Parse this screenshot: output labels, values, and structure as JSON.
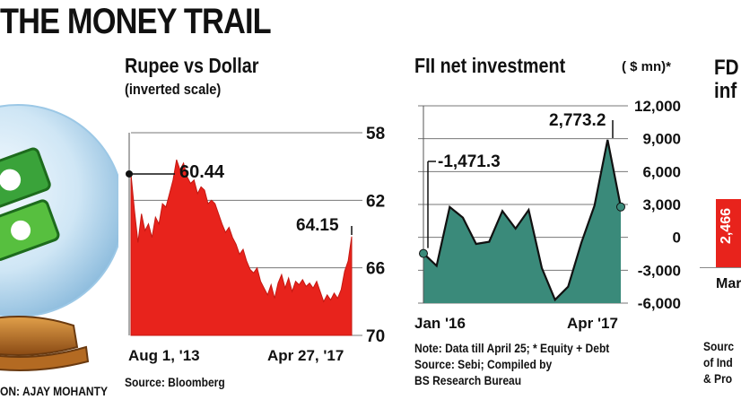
{
  "headline": "THE MONEY TRAIL",
  "credit": "ON: AJAY MOHANTY",
  "chart_data": [
    {
      "type": "area",
      "title": "Rupee vs Dollar",
      "subtitle": "(inverted scale)",
      "x_labels": [
        "Aug 1, '13",
        "Apr 27, '17"
      ],
      "y_ticks": [
        58,
        62,
        66,
        70
      ],
      "ylim": [
        58,
        70
      ],
      "y_inverted": true,
      "series": [
        {
          "name": "Rupee per Dollar",
          "values": [
            60.44,
            62.6,
            64.5,
            62.8,
            63.8,
            63.4,
            64.2,
            63.0,
            63.4,
            62.2,
            62.4,
            61.6,
            60.8,
            59.6,
            60.2,
            59.8,
            60.6,
            61.0,
            60.8,
            61.6,
            61.2,
            61.4,
            62.2,
            62.0,
            62.2,
            62.8,
            63.4,
            63.9,
            63.6,
            64.2,
            64.6,
            65.2,
            64.9,
            65.6,
            66.1,
            66.3,
            66.0,
            66.8,
            67.2,
            67.6,
            67.0,
            67.8,
            66.9,
            66.4,
            67.2,
            66.6,
            67.4,
            66.8,
            67.0,
            66.7,
            67.1,
            66.9,
            67.2,
            66.8,
            67.4,
            68.0,
            67.6,
            67.9,
            67.5,
            67.8,
            67.3,
            66.2,
            65.6,
            64.15
          ]
        }
      ],
      "annotations": [
        {
          "label": "60.44",
          "x": 0,
          "y": 60.44
        },
        {
          "label": "64.15",
          "x": 63,
          "y": 64.15
        }
      ],
      "source": "Source: Bloomberg",
      "color": "#e8231c"
    },
    {
      "type": "area",
      "title": "FII net investment",
      "unit": "( $ mn)*",
      "x_labels": [
        "Jan '16",
        "Apr '17"
      ],
      "y_ticks": [
        12000,
        9000,
        6000,
        3000,
        0,
        -3000,
        -6000
      ],
      "ylim": [
        -6000,
        12000
      ],
      "series": [
        {
          "name": "FII net investment",
          "values": [
            -1471.3,
            -2600,
            2773.2,
            1800,
            -600,
            -400,
            2400,
            800,
            2500,
            -2800,
            -5700,
            -4500,
            -500,
            2900,
            8900,
            2773.2
          ]
        }
      ],
      "annotations": [
        {
          "label": "-1,471.3",
          "x": 0,
          "y": -1471.3
        },
        {
          "label": "2,773.2",
          "x": 15,
          "y": 2773.2
        }
      ],
      "note_lines": [
        "Note: Data till April 25; * Equity + Debt",
        "Source: Sebi; Compiled by",
        "BS Research Bureau"
      ],
      "color": "#3a8a7a"
    },
    {
      "type": "bar",
      "title_partial": [
        "FD",
        "inf"
      ],
      "visible_value": "2,466",
      "x_label_partial": "Mar",
      "source_partial": [
        "Sourc",
        "of Ind",
        "& Pro"
      ],
      "color": "#e8231c"
    }
  ]
}
